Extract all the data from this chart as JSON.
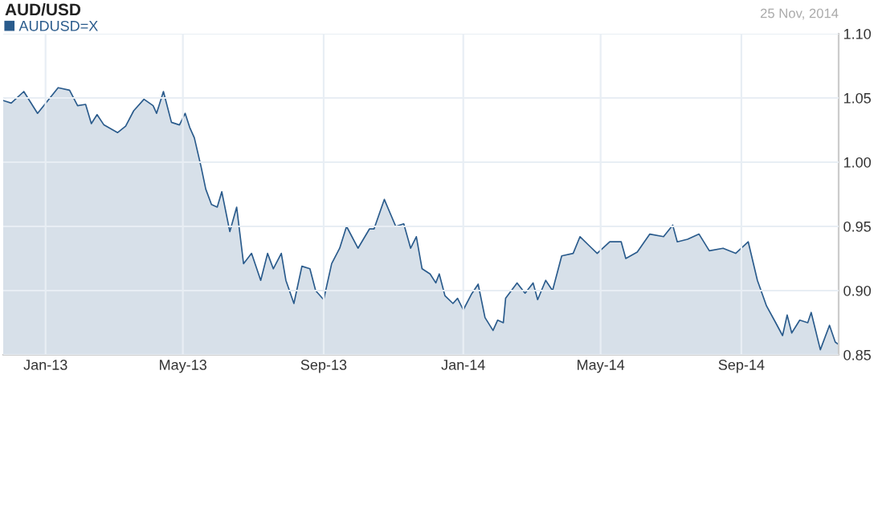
{
  "chart_data": {
    "type": "area",
    "title": "AUD/USD",
    "annotations": [
      "25 Nov, 2014"
    ],
    "legend": "top left",
    "grid": true,
    "xlim": [
      "2012-11-25",
      "2014-11-25"
    ],
    "xticks": [
      {
        "value": "2013-01-01",
        "label": "Jan-13"
      },
      {
        "value": "2013-05-01",
        "label": "May-13"
      },
      {
        "value": "2013-09-01",
        "label": "Sep-13"
      },
      {
        "value": "2014-01-01",
        "label": "Jan-14"
      },
      {
        "value": "2014-05-01",
        "label": "May-14"
      },
      {
        "value": "2014-09-01",
        "label": "Sep-14"
      }
    ],
    "ylim": [
      0.85,
      1.1
    ],
    "yticks": [
      0.85,
      {
        "value": 0.9,
        "label": "0.90"
      },
      0.95,
      {
        "value": 1.0,
        "label": "1.00"
      },
      1.05,
      {
        "value": 1.1,
        "label": "1.10"
      }
    ],
    "series": [
      {
        "name": "AUDUSD=X",
        "color": "#2a5b8c",
        "x": [
          "2012-11-25",
          "2012-12-02",
          "2012-12-13",
          "2012-12-25",
          "2013-01-03",
          "2013-01-12",
          "2013-01-22",
          "2013-01-29",
          "2013-02-05",
          "2013-02-10",
          "2013-02-15",
          "2013-02-21",
          "2013-03-05",
          "2013-03-12",
          "2013-03-19",
          "2013-03-28",
          "2013-04-05",
          "2013-04-08",
          "2013-04-14",
          "2013-04-21",
          "2013-04-28",
          "2013-05-03",
          "2013-05-07",
          "2013-05-11",
          "2013-05-17",
          "2013-05-21",
          "2013-05-26",
          "2013-05-31",
          "2013-06-04",
          "2013-06-11",
          "2013-06-17",
          "2013-06-23",
          "2013-06-30",
          "2013-07-08",
          "2013-07-14",
          "2013-07-19",
          "2013-07-26",
          "2013-07-30",
          "2013-08-06",
          "2013-08-13",
          "2013-08-20",
          "2013-08-25",
          "2013-09-01",
          "2013-09-08",
          "2013-09-15",
          "2013-09-21",
          "2013-10-01",
          "2013-10-11",
          "2013-10-15",
          "2013-10-24",
          "2013-11-03",
          "2013-11-10",
          "2013-11-16",
          "2013-11-21",
          "2013-11-26",
          "2013-12-03",
          "2013-12-08",
          "2013-12-11",
          "2013-12-16",
          "2013-12-23",
          "2013-12-27",
          "2014-01-01",
          "2014-01-08",
          "2014-01-14",
          "2014-01-20",
          "2014-01-27",
          "2014-01-31",
          "2014-02-05",
          "2014-02-07",
          "2014-02-17",
          "2014-02-24",
          "2014-03-03",
          "2014-03-07",
          "2014-03-14",
          "2014-03-20",
          "2014-03-28",
          "2014-04-07",
          "2014-04-13",
          "2014-04-21",
          "2014-04-28",
          "2014-05-09",
          "2014-05-19",
          "2014-05-23",
          "2014-06-02",
          "2014-06-13",
          "2014-06-25",
          "2014-07-03",
          "2014-07-07",
          "2014-07-16",
          "2014-07-26",
          "2014-08-04",
          "2014-08-16",
          "2014-08-27",
          "2014-09-07",
          "2014-09-15",
          "2014-09-23",
          "2014-10-01",
          "2014-10-07",
          "2014-10-11",
          "2014-10-15",
          "2014-10-22",
          "2014-10-29",
          "2014-11-01",
          "2014-11-09",
          "2014-11-17",
          "2014-11-22",
          "2014-11-25"
        ],
        "values": [
          1.048,
          1.046,
          1.055,
          1.038,
          1.048,
          1.058,
          1.056,
          1.044,
          1.045,
          1.03,
          1.037,
          1.029,
          1.023,
          1.028,
          1.04,
          1.049,
          1.044,
          1.038,
          1.055,
          1.031,
          1.029,
          1.038,
          1.027,
          1.019,
          0.996,
          0.979,
          0.967,
          0.965,
          0.977,
          0.946,
          0.965,
          0.921,
          0.929,
          0.908,
          0.929,
          0.917,
          0.929,
          0.908,
          0.89,
          0.919,
          0.917,
          0.9,
          0.893,
          0.921,
          0.933,
          0.95,
          0.933,
          0.948,
          0.948,
          0.971,
          0.95,
          0.952,
          0.933,
          0.942,
          0.917,
          0.913,
          0.906,
          0.913,
          0.896,
          0.89,
          0.894,
          0.885,
          0.897,
          0.905,
          0.879,
          0.869,
          0.877,
          0.875,
          0.894,
          0.906,
          0.898,
          0.906,
          0.893,
          0.908,
          0.9,
          0.927,
          0.929,
          0.942,
          0.935,
          0.929,
          0.938,
          0.938,
          0.925,
          0.93,
          0.944,
          0.942,
          0.951,
          0.938,
          0.94,
          0.944,
          0.931,
          0.933,
          0.929,
          0.938,
          0.908,
          0.888,
          0.875,
          0.865,
          0.881,
          0.867,
          0.877,
          0.875,
          0.883,
          0.854,
          0.873,
          0.86,
          0.858
        ]
      }
    ]
  }
}
